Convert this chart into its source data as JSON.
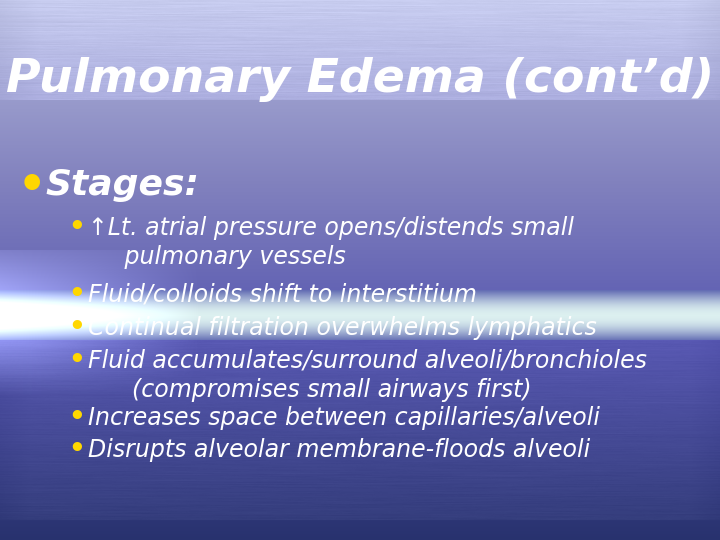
{
  "title": "Pulmonary Edema (cont’d)",
  "title_color": "#FFFFFF",
  "title_fontsize": 34,
  "bullet_main_color": "#FFD700",
  "bullet_main_text": "Stages:",
  "bullet_main_fontsize": 26,
  "bullet_sub_color": "#FFD700",
  "bullet_sub_fontsize": 17,
  "text_color": "#FFFFFF",
  "sub_bullet_line1_1": "↑Lt. atrial pressure opens/distends small",
  "sub_bullet_line1_2": "   pulmonary vessels",
  "sub_bullet_2": "Fluid/colloids shift to interstitium",
  "sub_bullet_3": "Continual filtration overwhelms lymphatics",
  "sub_bullet_4a": "Fluid accumulates/surround alveoli/bronchioles",
  "sub_bullet_4b": "    (compromises small airways first)",
  "sub_bullet_5": "Increases space between capillaries/alveoli",
  "sub_bullet_6": "Disrupts alveolar membrane-floods alveoli"
}
